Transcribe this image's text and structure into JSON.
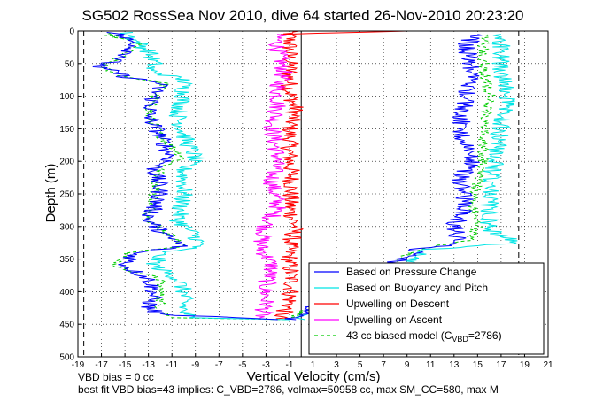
{
  "chart_data": {
    "type": "line",
    "title": "SG502 RossSea Nov 2010, dive 64 started 26-Nov-2010 20:23:20",
    "xlabel": "Vertical Velocity (cm/s)",
    "ylabel": "Depth (m)",
    "xlim": [
      -19,
      21
    ],
    "ylim": [
      0,
      500
    ],
    "y_reversed": true,
    "grid": true,
    "legend_position": "bottom-right",
    "x_ticks": [
      "-19",
      "-17",
      "-15",
      "-13",
      "-11",
      "-9",
      "-7",
      "-5",
      "-3",
      "-1",
      "1",
      "3",
      "5",
      "7",
      "9",
      "11",
      "13",
      "15",
      "17",
      "19",
      "21"
    ],
    "y_ticks": [
      "0",
      "50",
      "100",
      "150",
      "200",
      "250",
      "300",
      "350",
      "400",
      "450",
      "500"
    ],
    "reference_lines": [
      {
        "axis": "x",
        "value": 0,
        "style": "solid",
        "color": "#000000"
      },
      {
        "axis": "x",
        "value": -18.5,
        "style": "dashed",
        "color": "#000000"
      },
      {
        "axis": "x",
        "value": 18.5,
        "style": "dashed",
        "color": "#000000"
      }
    ],
    "series": [
      {
        "name": "Based on Pressure Change",
        "color": "#0000ff",
        "style": "solid",
        "points_descent": [
          [
            -16,
            2
          ],
          [
            -14,
            20
          ],
          [
            -15,
            40
          ],
          [
            -17.5,
            55
          ],
          [
            -16,
            62
          ],
          [
            -15,
            70
          ],
          [
            -12,
            80
          ],
          [
            -12.5,
            100
          ],
          [
            -13,
            130
          ],
          [
            -12,
            160
          ],
          [
            -11,
            195
          ],
          [
            -12.5,
            210
          ],
          [
            -12,
            250
          ],
          [
            -13,
            290
          ],
          [
            -11.5,
            315
          ],
          [
            -10,
            330
          ],
          [
            -14,
            340
          ],
          [
            -15,
            360
          ],
          [
            -13,
            380
          ],
          [
            -12.5,
            400
          ],
          [
            -13,
            425
          ],
          [
            -12,
            435
          ],
          [
            -2,
            443
          ]
        ],
        "points_ascent": [
          [
            -1,
            443
          ],
          [
            10,
            335
          ],
          [
            13.5,
            325
          ],
          [
            13,
            300
          ],
          [
            14,
            270
          ],
          [
            13.5,
            230
          ],
          [
            14.5,
            200
          ],
          [
            13.5,
            150
          ],
          [
            14,
            100
          ],
          [
            14.5,
            60
          ],
          [
            14,
            20
          ],
          [
            15,
            5
          ]
        ]
      },
      {
        "name": "Based on Buoyancy and Pitch",
        "color": "#00e5e5",
        "style": "solid",
        "points_descent": [
          [
            -15,
            2
          ],
          [
            -13,
            30
          ],
          [
            -12.5,
            50
          ],
          [
            -13,
            60
          ],
          [
            -10,
            75
          ],
          [
            -10,
            100
          ],
          [
            -10.5,
            130
          ],
          [
            -10,
            160
          ],
          [
            -9,
            195
          ],
          [
            -10,
            210
          ],
          [
            -10,
            250
          ],
          [
            -10.5,
            290
          ],
          [
            -9,
            315
          ],
          [
            -8.5,
            330
          ],
          [
            -12,
            340
          ],
          [
            -12.5,
            360
          ],
          [
            -10.5,
            380
          ],
          [
            -10,
            400
          ],
          [
            -10,
            430
          ],
          [
            -9.5,
            440
          ],
          [
            -1,
            443
          ]
        ],
        "points_ascent": [
          [
            0,
            443
          ],
          [
            11,
            335
          ],
          [
            18.5,
            325
          ],
          [
            16,
            305
          ],
          [
            16,
            270
          ],
          [
            16,
            235
          ],
          [
            16.5,
            200
          ],
          [
            17,
            150
          ],
          [
            17.5,
            100
          ],
          [
            17,
            60
          ],
          [
            17,
            20
          ],
          [
            17,
            5
          ]
        ]
      },
      {
        "name": "Upwelling on Descent",
        "color": "#ff0000",
        "style": "solid",
        "points": [
          [
            -2,
            5
          ],
          [
            9,
            0
          ],
          [
            -1,
            0
          ],
          [
            -1,
            30
          ],
          [
            -1,
            60
          ],
          [
            -1,
            90
          ],
          [
            -0.5,
            120
          ],
          [
            -1,
            150
          ],
          [
            -1,
            190
          ],
          [
            -0.8,
            230
          ],
          [
            -1,
            270
          ],
          [
            -0.5,
            300
          ],
          [
            -1,
            330
          ],
          [
            -1,
            360
          ],
          [
            -0.8,
            390
          ],
          [
            -1,
            420
          ],
          [
            -2,
            443
          ]
        ]
      },
      {
        "name": "Upwelling on Ascent",
        "color": "#ff00ff",
        "style": "solid",
        "points": [
          [
            -2,
            5
          ],
          [
            -2,
            30
          ],
          [
            -1.5,
            60
          ],
          [
            -2,
            90
          ],
          [
            -2,
            120
          ],
          [
            -2.5,
            150
          ],
          [
            -2,
            190
          ],
          [
            -2.5,
            230
          ],
          [
            -2,
            270
          ],
          [
            -3,
            300
          ],
          [
            -3.5,
            330
          ],
          [
            -2.5,
            360
          ],
          [
            -3,
            390
          ],
          [
            -3,
            420
          ],
          [
            -3.5,
            443
          ]
        ]
      },
      {
        "name": "43 cc biased model (C_VBD=2786)",
        "color": "#00cc00",
        "style": "dashed",
        "points_descent": [
          [
            -17,
            2
          ],
          [
            -14,
            20
          ],
          [
            -15.5,
            40
          ],
          [
            -17,
            55
          ],
          [
            -15,
            70
          ],
          [
            -11.5,
            80
          ],
          [
            -12.5,
            100
          ],
          [
            -13,
            130
          ],
          [
            -12,
            160
          ],
          [
            -10,
            195
          ],
          [
            -12,
            210
          ],
          [
            -12.5,
            250
          ],
          [
            -13,
            290
          ],
          [
            -11,
            315
          ],
          [
            -10,
            330
          ],
          [
            -14.5,
            340
          ],
          [
            -16,
            360
          ],
          [
            -12,
            380
          ],
          [
            -12,
            400
          ],
          [
            -12,
            430
          ],
          [
            -11,
            440
          ],
          [
            -1,
            443
          ]
        ],
        "points_ascent": [
          [
            -1,
            443
          ],
          [
            10,
            335
          ],
          [
            14.5,
            320
          ],
          [
            15,
            300
          ],
          [
            14.5,
            265
          ],
          [
            15,
            235
          ],
          [
            15.5,
            200
          ],
          [
            15.5,
            150
          ],
          [
            16,
            100
          ],
          [
            15.5,
            60
          ],
          [
            15.5,
            20
          ],
          [
            16,
            5
          ]
        ]
      }
    ],
    "legend": {
      "entries": [
        {
          "label": "Based on Pressure Change",
          "color": "#0000ff",
          "style": "solid"
        },
        {
          "label": "Based on Buoyancy and Pitch",
          "color": "#00e5e5",
          "style": "solid"
        },
        {
          "label": "Upwelling on Descent",
          "color": "#ff0000",
          "style": "solid"
        },
        {
          "label": "Upwelling on Ascent",
          "color": "#ff00ff",
          "style": "solid"
        },
        {
          "label_main": "43 cc biased model (C",
          "label_sub": "VBD",
          "label_tail": "=2786)",
          "color": "#00cc00",
          "style": "dashed"
        }
      ]
    },
    "footnotes": [
      "VBD bias = 0 cc",
      "best fit VBD bias=43 implies: C_VBD=2786, volmax=50958 cc, max SM_CC=580, max M"
    ]
  }
}
